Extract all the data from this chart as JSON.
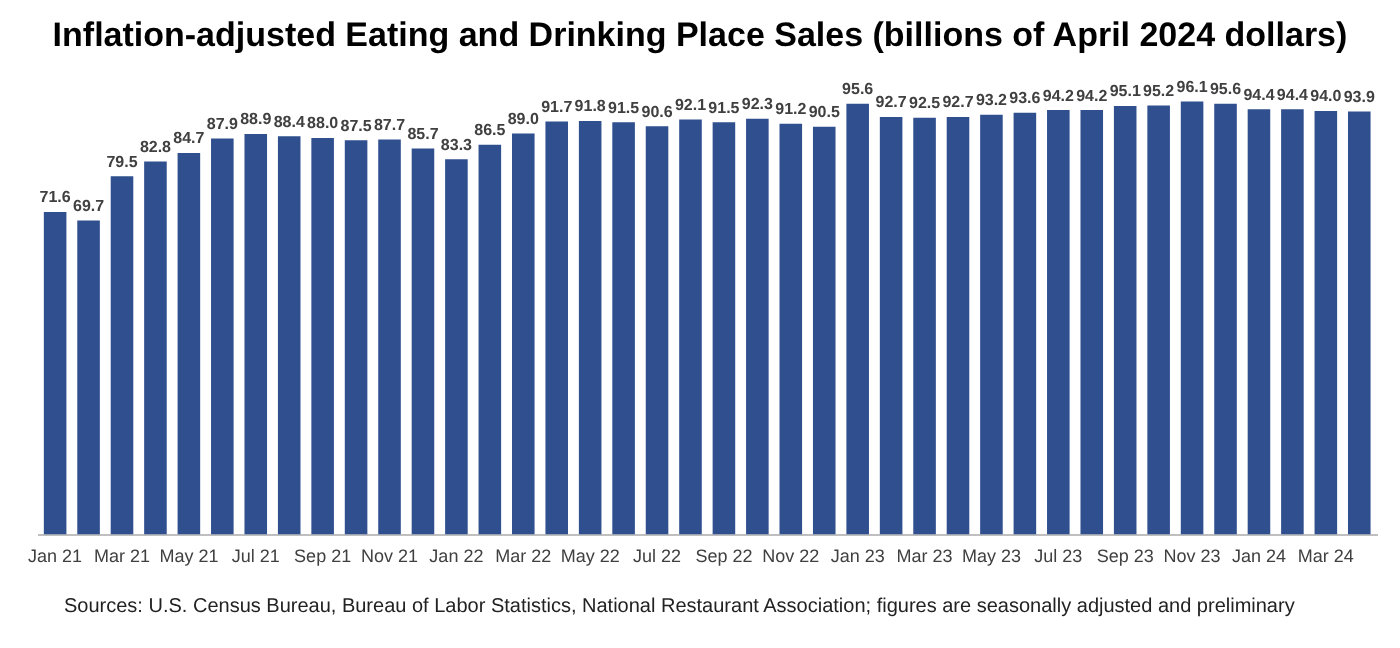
{
  "chart_data": {
    "type": "bar",
    "title": "Inflation-adjusted Eating and Drinking Place Sales (billions of April 2024 dollars)",
    "categories": [
      "Jan 21",
      null,
      "Mar 21",
      null,
      "May 21",
      null,
      "Jul 21",
      null,
      "Sep 21",
      null,
      "Nov 21",
      null,
      "Jan 22",
      null,
      "Mar 22",
      null,
      "May 22",
      null,
      "Jul 22",
      null,
      "Sep 22",
      null,
      "Nov 22",
      null,
      "Jan 23",
      null,
      "Mar 23",
      null,
      "May 23",
      null,
      "Jul 23",
      null,
      "Sep 23",
      null,
      "Nov 23",
      null,
      "Jan 24",
      null,
      "Mar 24",
      null
    ],
    "values": [
      71.6,
      69.7,
      79.5,
      82.8,
      84.7,
      87.9,
      88.9,
      88.4,
      88.0,
      87.5,
      87.7,
      85.7,
      83.3,
      86.5,
      89.0,
      91.7,
      91.8,
      91.5,
      90.6,
      92.1,
      91.5,
      92.3,
      91.2,
      90.5,
      95.6,
      92.7,
      92.5,
      92.7,
      93.2,
      93.6,
      94.2,
      94.2,
      95.1,
      95.2,
      96.1,
      95.6,
      94.4,
      94.4,
      94.0,
      93.9
    ],
    "value_labels": [
      "71.6",
      "69.7",
      "79.5",
      "82.8",
      "84.7",
      "87.9",
      "88.9",
      "88.4",
      "88.0",
      "87.5",
      "87.7",
      "85.7",
      "83.3",
      "86.5",
      "89.0",
      "91.7",
      "91.8",
      "91.5",
      "90.6",
      "92.1",
      "91.5",
      "92.3",
      "91.2",
      "90.5",
      "95.6",
      "92.7",
      "92.5",
      "92.7",
      "93.2",
      "93.6",
      "94.2",
      "94.2",
      "95.1",
      "95.2",
      "96.1",
      "95.6",
      "94.4",
      "94.4",
      "94.0",
      "93.9"
    ],
    "color": "#2f4f8f",
    "data_labels": true,
    "grid": false,
    "legend": false,
    "annotations": [
      "Sources: U.S. Census Bureau, Bureau of Labor Statistics, National Restaurant Association; figures are seasonally adjusted and preliminary"
    ]
  }
}
